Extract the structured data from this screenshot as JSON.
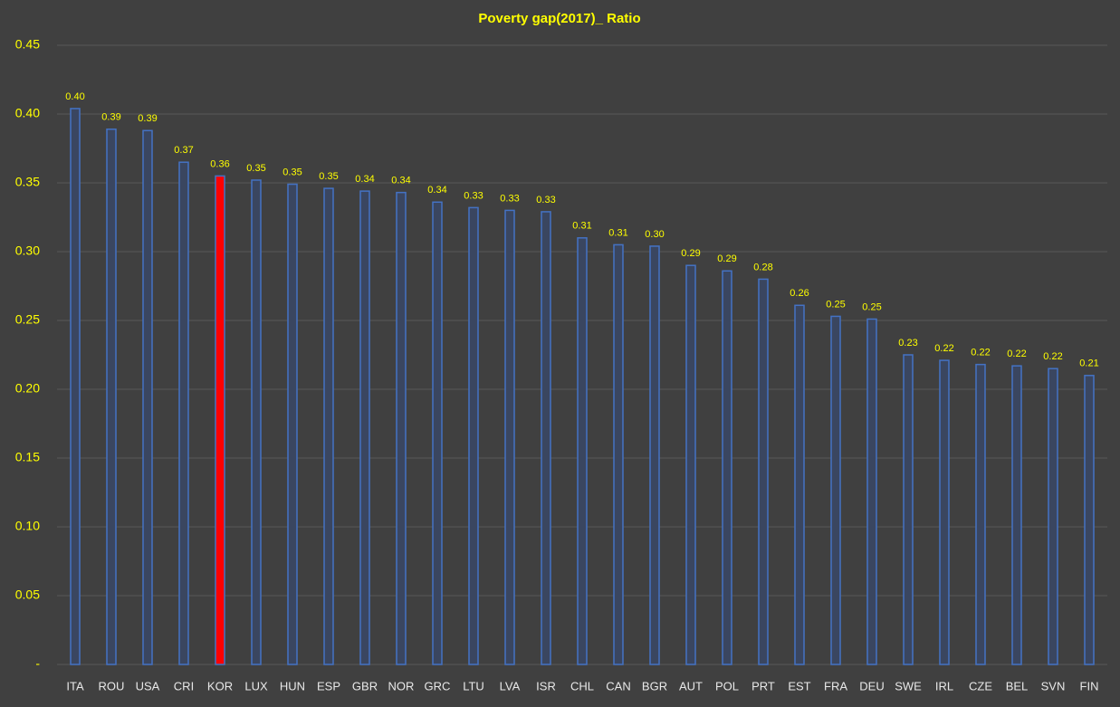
{
  "chart_data": {
    "type": "bar",
    "title": "Poverty gap(2017)_ Ratio",
    "categories": [
      "ITA",
      "ROU",
      "USA",
      "CRI",
      "KOR",
      "LUX",
      "HUN",
      "ESP",
      "GBR",
      "NOR",
      "GRC",
      "LTU",
      "LVA",
      "ISR",
      "CHL",
      "CAN",
      "BGR",
      "AUT",
      "POL",
      "PRT",
      "EST",
      "FRA",
      "DEU",
      "SWE",
      "IRL",
      "CZE",
      "BEL",
      "SVN",
      "FIN"
    ],
    "values": [
      0.404,
      0.389,
      0.388,
      0.365,
      0.355,
      0.352,
      0.349,
      0.346,
      0.344,
      0.343,
      0.336,
      0.332,
      0.33,
      0.329,
      0.31,
      0.305,
      0.304,
      0.29,
      0.286,
      0.28,
      0.261,
      0.253,
      0.251,
      0.225,
      0.221,
      0.218,
      0.217,
      0.215,
      0.21
    ],
    "value_labels": [
      "0.40",
      "0.39",
      "0.39",
      "0.37",
      "0.36",
      "0.35",
      "0.35",
      "0.35",
      "0.34",
      "0.34",
      "0.34",
      "0.33",
      "0.33",
      "0.33",
      "0.31",
      "0.31",
      "0.30",
      "0.29",
      "0.29",
      "0.28",
      "0.26",
      "0.25",
      "0.25",
      "0.23",
      "0.22",
      "0.22",
      "0.22",
      "0.22",
      "0.21"
    ],
    "color": "#4472c4",
    "bar_fills": [
      "#3a4660",
      "#3a4660",
      "#3a4660",
      "#3a4660",
      "#ff0000",
      "#3a4660",
      "#3a4660",
      "#3a4660",
      "#3a4660",
      "#3a4660",
      "#3a4660",
      "#3a4660",
      "#3a4660",
      "#3a4660",
      "#3a4660",
      "#3a4660",
      "#3a4660",
      "#3a4660",
      "#3a4660",
      "#3a4660",
      "#3a4660",
      "#3a4660",
      "#3a4660",
      "#3a4660",
      "#3a4660",
      "#3a4660",
      "#3a4660",
      "#3a4660",
      "#3a4660"
    ],
    "ylim": [
      0,
      0.45
    ],
    "yticks": [
      {
        "value": 0,
        "label": "-"
      },
      0.05,
      {
        "value": 0.1,
        "label": "0.10"
      },
      0.15,
      {
        "value": 0.2,
        "label": "0.20"
      },
      0.25,
      {
        "value": 0.3,
        "label": "0.30"
      },
      0.35,
      {
        "value": 0.4,
        "label": "0.40"
      },
      0.45
    ],
    "grid": true
  }
}
